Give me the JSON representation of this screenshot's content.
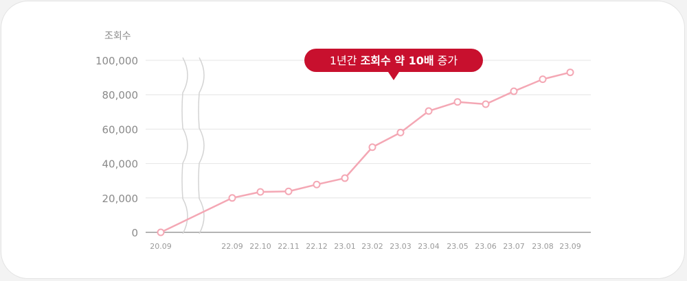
{
  "chart_data": {
    "type": "line",
    "ylabel": "조회수",
    "ylim": [
      0,
      100000
    ],
    "yticks": [
      "0",
      "20,000",
      "40,000",
      "60,000",
      "80,000",
      "100,000"
    ],
    "categories": [
      "20.09",
      "22.09",
      "22.10",
      "22.11",
      "22.12",
      "23.01",
      "23.02",
      "23.03",
      "23.04",
      "23.05",
      "23.06",
      "23.07",
      "23.08",
      "23.09"
    ],
    "values": [
      0,
      20000,
      23500,
      23800,
      27800,
      31500,
      49500,
      58000,
      70500,
      75800,
      74500,
      82000,
      89000,
      93000
    ],
    "axis_break": "between 20.09 and 22.09",
    "grid": true,
    "colors": {
      "line": "#f4a7b4",
      "callout": "#c8102e",
      "grid": "#e4e4e4",
      "axis": "#9a9a9a"
    }
  },
  "callout": {
    "prefix": "1년간 ",
    "emphasis": "조회수 약 10배",
    "suffix": " 증가"
  }
}
